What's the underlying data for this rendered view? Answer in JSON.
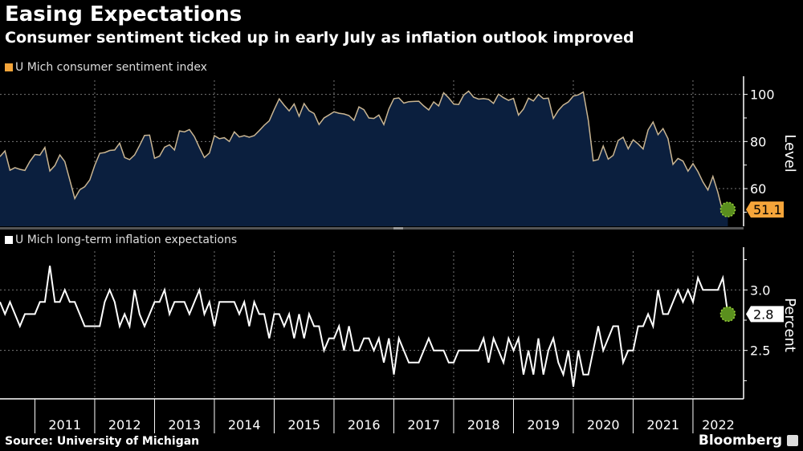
{
  "title": "Easing Expectations",
  "subtitle": "Consumer sentiment ticked up in early July as inflation outlook improved",
  "source": "Source: University of Michigan",
  "brand": "Bloomberg",
  "colors": {
    "background": "#000000",
    "sentiment_line": "#c9b592",
    "sentiment_fill": "#0b1f3e",
    "sentiment_badge": "#f5a53a",
    "inflation_line": "#ffffff",
    "marker": "#5a8f1e"
  },
  "chart_data": [
    {
      "type": "area",
      "legend": "U Mich consumer sentiment index",
      "ylabel": "Level",
      "ylim": [
        44,
        106
      ],
      "yticks": [
        60,
        80,
        100
      ],
      "grid": true,
      "x_start": "2010-05",
      "x_end": "2022-07",
      "frequency": "monthly",
      "last_value_label": "51.1",
      "values": [
        73.6,
        76.0,
        67.8,
        68.9,
        68.2,
        67.7,
        71.6,
        74.5,
        74.2,
        77.5,
        67.5,
        69.8,
        74.3,
        71.5,
        63.7,
        55.8,
        59.5,
        60.8,
        63.7,
        69.9,
        75.0,
        75.3,
        76.2,
        76.4,
        79.3,
        73.2,
        72.3,
        74.3,
        78.3,
        82.6,
        82.7,
        72.9,
        73.8,
        77.6,
        78.6,
        76.4,
        84.5,
        84.1,
        85.1,
        82.1,
        77.5,
        73.2,
        75.1,
        82.5,
        81.2,
        81.6,
        80.0,
        84.1,
        81.9,
        82.5,
        81.8,
        82.5,
        84.6,
        86.9,
        88.8,
        93.6,
        98.1,
        95.4,
        93.0,
        95.9,
        90.7,
        96.1,
        93.1,
        91.9,
        87.2,
        90.0,
        91.3,
        92.6,
        92.0,
        91.7,
        91.0,
        89.0,
        94.7,
        93.5,
        90.0,
        89.8,
        91.2,
        87.2,
        93.8,
        98.2,
        98.5,
        96.3,
        96.9,
        97.0,
        97.1,
        95.1,
        93.4,
        96.8,
        95.1,
        100.7,
        98.5,
        95.9,
        95.7,
        99.7,
        101.4,
        98.8,
        98.0,
        98.2,
        97.9,
        96.2,
        100.1,
        98.6,
        97.5,
        98.3,
        91.2,
        93.8,
        98.4,
        97.2,
        100.0,
        98.2,
        98.4,
        89.8,
        93.2,
        95.5,
        96.8,
        99.3,
        99.8,
        101.0,
        89.1,
        71.8,
        72.3,
        78.1,
        72.5,
        74.1,
        80.4,
        81.8,
        76.9,
        80.7,
        79.0,
        76.8,
        84.9,
        88.3,
        82.9,
        85.5,
        81.2,
        70.3,
        72.8,
        71.7,
        67.4,
        70.6,
        67.2,
        62.8,
        59.4,
        65.2,
        58.4,
        50.0,
        51.1
      ]
    },
    {
      "type": "line",
      "legend": "U Mich long-term inflation expectations",
      "ylabel": "Percent",
      "ylim": [
        2.1,
        3.32
      ],
      "yticks": [
        2.5,
        3.0
      ],
      "grid": true,
      "x_start": "2010-05",
      "x_end": "2022-07",
      "frequency": "monthly",
      "last_value_label": "2.8",
      "values": [
        2.9,
        2.8,
        2.9,
        2.8,
        2.7,
        2.8,
        2.8,
        2.8,
        2.9,
        2.9,
        3.2,
        2.9,
        2.9,
        3.0,
        2.9,
        2.9,
        2.8,
        2.7,
        2.7,
        2.7,
        2.7,
        2.9,
        3.0,
        2.9,
        2.7,
        2.8,
        2.7,
        3.0,
        2.8,
        2.7,
        2.8,
        2.9,
        2.9,
        3.0,
        2.8,
        2.9,
        2.9,
        2.9,
        2.8,
        2.9,
        3.0,
        2.8,
        2.9,
        2.7,
        2.9,
        2.9,
        2.9,
        2.9,
        2.8,
        2.9,
        2.7,
        2.9,
        2.8,
        2.8,
        2.6,
        2.8,
        2.8,
        2.7,
        2.8,
        2.6,
        2.8,
        2.6,
        2.8,
        2.7,
        2.7,
        2.5,
        2.6,
        2.6,
        2.7,
        2.5,
        2.7,
        2.5,
        2.5,
        2.6,
        2.6,
        2.5,
        2.6,
        2.4,
        2.6,
        2.3,
        2.6,
        2.5,
        2.4,
        2.4,
        2.4,
        2.5,
        2.6,
        2.5,
        2.5,
        2.5,
        2.4,
        2.4,
        2.5,
        2.5,
        2.5,
        2.5,
        2.5,
        2.6,
        2.4,
        2.6,
        2.5,
        2.4,
        2.6,
        2.5,
        2.6,
        2.3,
        2.5,
        2.3,
        2.6,
        2.3,
        2.5,
        2.6,
        2.4,
        2.3,
        2.5,
        2.2,
        2.5,
        2.3,
        2.3,
        2.5,
        2.7,
        2.5,
        2.6,
        2.7,
        2.7,
        2.4,
        2.5,
        2.5,
        2.7,
        2.7,
        2.8,
        2.7,
        3.0,
        2.8,
        2.8,
        2.9,
        3.0,
        2.9,
        3.0,
        2.9,
        3.1,
        3.0,
        3.0,
        3.0,
        3.0,
        3.1,
        2.8
      ]
    }
  ],
  "x_axis": {
    "tick_labels": [
      "2011",
      "2012",
      "2013",
      "2014",
      "2015",
      "2016",
      "2017",
      "2018",
      "2019",
      "2020",
      "2021",
      "2022"
    ]
  }
}
